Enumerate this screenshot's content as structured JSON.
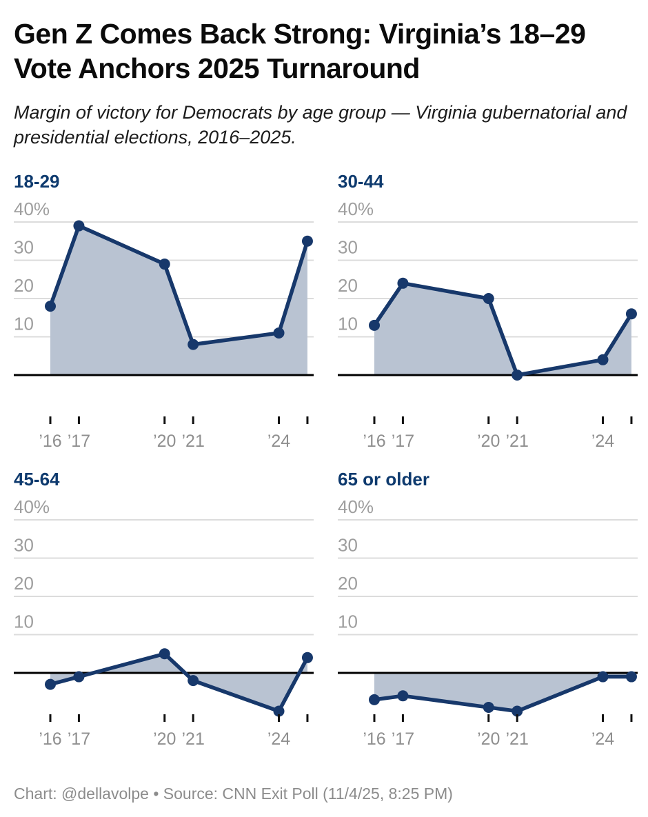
{
  "page": {
    "title": "Gen Z Comes Back Strong: Virginia’s 18–29 Vote Anchors 2025 Turnaround",
    "subtitle": "Margin of victory for Democrats by age group — Virginia gubernatorial and presidential elections, 2016–2025.",
    "credit": "Chart: @dellavolpe • Source: CNN Exit Poll (11/4/25, 8:25 PM)"
  },
  "colors": {
    "line": "#17386B",
    "dot": "#17386B",
    "fill": "#B9C3D2",
    "grid": "#DCDCDC",
    "baseline": "#000000",
    "tick_mark": "#111111",
    "y_label": "#9E9E9E",
    "x_label": "#8F8F8F",
    "panel_title": "#0E3A6E"
  },
  "axes": {
    "unit": "%",
    "y_ticks": [
      {
        "value": 40,
        "label": "40%"
      },
      {
        "value": 30,
        "label": "30"
      },
      {
        "value": 20,
        "label": "20"
      },
      {
        "value": 10,
        "label": "10"
      }
    ],
    "x_ticks": [
      {
        "year": 2016,
        "label": "’16"
      },
      {
        "year": 2017,
        "label": "’17"
      },
      {
        "year": 2020,
        "label": "’20"
      },
      {
        "year": 2021,
        "label": "’21"
      },
      {
        "year": 2024,
        "label": "’24"
      },
      {
        "year": 2025,
        "label": ""
      }
    ]
  },
  "chart_data": [
    {
      "type": "area",
      "title": "18-29",
      "x": [
        2016,
        2017,
        2020,
        2021,
        2024,
        2025
      ],
      "values": [
        18,
        39,
        29,
        8,
        11,
        35
      ],
      "ylim": [
        0,
        42
      ],
      "grid": true
    },
    {
      "type": "area",
      "title": "30-44",
      "x": [
        2016,
        2017,
        2020,
        2021,
        2024,
        2025
      ],
      "values": [
        13,
        24,
        20,
        0,
        4,
        16
      ],
      "ylim": [
        0,
        42
      ],
      "grid": true
    },
    {
      "type": "area",
      "title": "45-64",
      "x": [
        2016,
        2017,
        2020,
        2021,
        2024,
        2025
      ],
      "values": [
        -3,
        -1,
        5,
        -2,
        -10,
        4
      ],
      "ylim": [
        -12,
        42
      ],
      "grid": true
    },
    {
      "type": "area",
      "title": "65 or older",
      "x": [
        2016,
        2017,
        2020,
        2021,
        2024,
        2025
      ],
      "values": [
        -7,
        -6,
        -9,
        -10,
        -1,
        -1
      ],
      "ylim": [
        -12,
        42
      ],
      "grid": true
    }
  ]
}
